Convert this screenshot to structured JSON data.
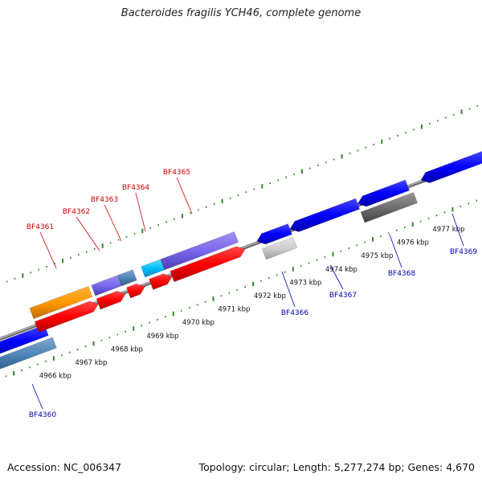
{
  "title": "Bacteroides fragilis YCH46, complete genome",
  "footer": {
    "accession": "Accession: NC_006347",
    "summary": "Topology: circular; Length: 5,277,274 bp; Genes: 4,670"
  },
  "colors": {
    "background": "#ffffff",
    "track_line": "#8a8a8a",
    "tick": "#2e8b22",
    "label_forward": "#cc0000",
    "label_reverse": "#0000aa",
    "leader_forward": "#cc0000",
    "leader_reverse": "#0000aa"
  },
  "scale_labels": [
    "4966 kbp",
    "4967 kbp",
    "4968 kbp",
    "4969 kbp",
    "4970 kbp",
    "4971 kbp",
    "4972 kbp",
    "4973 kbp",
    "4974 kbp",
    "4975 kbp",
    "4976 kbp",
    "4977 kbp"
  ],
  "gene_labels_forward": [
    "BF4361",
    "BF4362",
    "BF4363",
    "BF4364",
    "BF4365"
  ],
  "gene_labels_reverse": [
    "BF4360",
    "BF4366",
    "BF4367",
    "BF4368",
    "BF4369"
  ]
}
